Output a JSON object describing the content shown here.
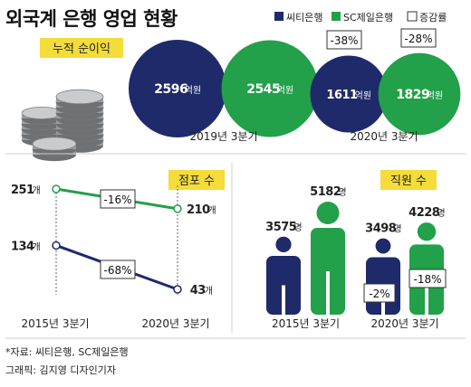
{
  "title": "외국계 은행 영업 현황",
  "legend": [
    {
      "label": "씨티은행",
      "color": "#1f2a6b",
      "kind": "swatch"
    },
    {
      "label": "SC제일은행",
      "color": "#22a04a",
      "kind": "swatch"
    },
    {
      "label": "증감률",
      "color": "#ffffff",
      "kind": "box"
    }
  ],
  "colors": {
    "citi": "#1f2a6b",
    "sc": "#22a04a",
    "grid": "#cccccc",
    "label_bg": "#f4dc3a"
  },
  "chart_data": [
    {
      "type": "bubble",
      "title": "누적 순이익",
      "unit": "억원",
      "categories": [
        "2019년 3분기",
        "2020년 3분기"
      ],
      "series": [
        {
          "name": "씨티은행",
          "values": [
            2596,
            1611
          ]
        },
        {
          "name": "SC제일은행",
          "values": [
            2545,
            1829
          ]
        }
      ],
      "annotations": [
        "-38%",
        "-28%"
      ],
      "icon": "coin-stack-icon"
    },
    {
      "type": "line",
      "title": "점포 수",
      "unit": "개",
      "categories": [
        "2015년 3분기",
        "2020년 3분기"
      ],
      "series": [
        {
          "name": "SC제일은행",
          "values": [
            251,
            210
          ]
        },
        {
          "name": "씨티은행",
          "values": [
            134,
            43
          ]
        }
      ],
      "annotations": [
        "-16%",
        "-68%"
      ]
    },
    {
      "type": "bar",
      "title": "직원 수",
      "unit": "명",
      "categories": [
        "2015년 3분기",
        "2020년 3분기"
      ],
      "series": [
        {
          "name": "씨티은행",
          "values": [
            3575,
            3498
          ]
        },
        {
          "name": "SC제일은행",
          "values": [
            5182,
            4228
          ]
        }
      ],
      "annotations": [
        "-2%",
        "-18%"
      ],
      "icon": "person-icon"
    }
  ],
  "footer": {
    "source": "*자료: 씨티은행, SC제일은행",
    "credit": "그래픽: 김지영 디자인기자"
  }
}
